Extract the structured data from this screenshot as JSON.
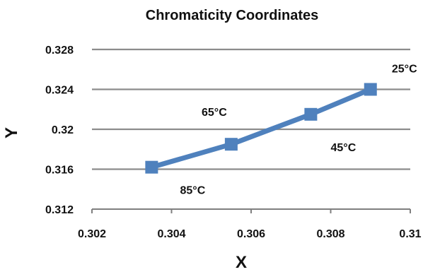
{
  "chart_data": {
    "type": "line",
    "title": "Chromaticity Coordinates",
    "xlabel": "X",
    "ylabel": "Y",
    "xlim": [
      0.302,
      0.31
    ],
    "ylim": [
      0.312,
      0.328
    ],
    "x_ticks": [
      "0.302",
      "0.304",
      "0.306",
      "0.308",
      "0.31"
    ],
    "y_ticks": [
      "0.312",
      "0.316",
      "0.32",
      "0.324",
      "0.328"
    ],
    "grid": true,
    "series": [
      {
        "color": "#4f81bd",
        "marker": "square",
        "points": [
          {
            "x": 0.3035,
            "y": 0.3162,
            "label": "85°C"
          },
          {
            "x": 0.3055,
            "y": 0.3185,
            "label": "65°C"
          },
          {
            "x": 0.3075,
            "y": 0.3215,
            "label": "45°C"
          },
          {
            "x": 0.309,
            "y": 0.324,
            "label": "25°C"
          }
        ]
      }
    ],
    "annotations": [
      "85°C",
      "65°C",
      "45°C",
      "25°C"
    ]
  }
}
